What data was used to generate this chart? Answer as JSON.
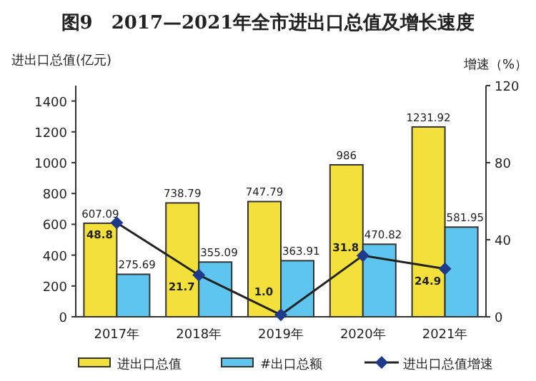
{
  "chart_data": {
    "type": "bar",
    "title": "图9　2017—2021年全市进出口总值及增长速度",
    "ylabel": "进出口总值(亿元)",
    "y2label": "增速（%）",
    "categories": [
      "2017年",
      "2018年",
      "2019年",
      "2020年",
      "2021年"
    ],
    "series": [
      {
        "name": "进出口总值",
        "color": "#f3e03b",
        "values": [
          607.09,
          738.79,
          747.79,
          986,
          1231.92
        ],
        "value_labels": [
          "607.09",
          "738.79",
          "747.79",
          "986",
          "1231.92"
        ]
      },
      {
        "name": "#出口总额",
        "color": "#5ec6ee",
        "values": [
          275.69,
          355.09,
          363.91,
          470.82,
          581.95
        ],
        "value_labels": [
          "275.69",
          "355.09",
          "363.91",
          "470.82",
          "581.95"
        ]
      },
      {
        "name": "进出口总值增速",
        "type": "line",
        "axis": "y2",
        "color": "#1f3a8a",
        "marker": "diamond",
        "values": [
          48.8,
          21.7,
          1.0,
          31.8,
          24.9
        ],
        "value_labels": [
          "48.8",
          "21.7",
          "1.0",
          "31.8",
          "24.9"
        ]
      }
    ],
    "ylim": [
      0,
      1500
    ],
    "yticks": [
      0,
      200,
      400,
      600,
      800,
      1000,
      1200,
      1400
    ],
    "y2lim": [
      0,
      120
    ],
    "y2ticks": [
      0,
      40,
      80,
      120
    ],
    "grid": false,
    "legend": "bottom"
  }
}
